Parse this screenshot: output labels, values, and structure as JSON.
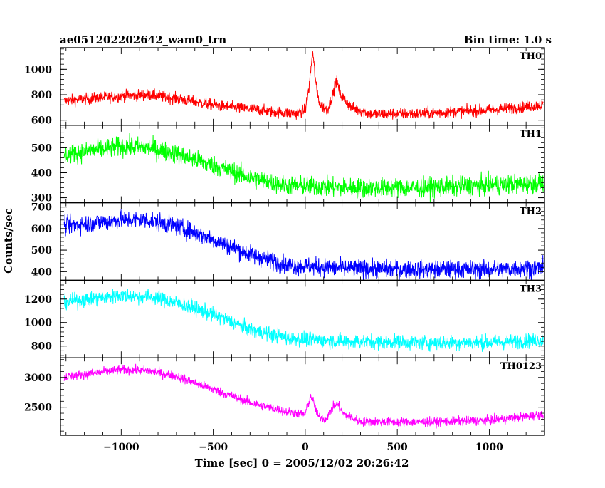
{
  "header": {
    "title": "ae051202202642_wam0_trn",
    "bin_time": "Bin time: 1.0 s"
  },
  "axes": {
    "xlabel": "Time [sec] 0 = 2005/12/02 20:26:42",
    "ylabel": "Counts/sec"
  },
  "colors": {
    "TH0": "#ff0000",
    "TH1": "#00ff00",
    "TH2": "#0000ff",
    "TH3": "#00ffff",
    "TH0123": "#ff00ff",
    "axes": "#000000",
    "background": "#ffffff"
  },
  "chart_data": {
    "type": "line",
    "title": "ae051202202642_wam0_trn",
    "subtitle": "Bin time: 1.0 s",
    "xlabel": "Time [sec] 0 = 2005/12/02 20:26:42",
    "ylabel": "Counts/sec",
    "xlim": [
      -1330,
      1300
    ],
    "x_ticks": [
      -1000,
      -500,
      0,
      500,
      1000
    ],
    "x_tick_labels": [
      "−1000",
      "−500",
      "0",
      "500",
      "1000"
    ],
    "bin_time_s": 1.0,
    "grid": false,
    "legend": "none",
    "panels": [
      {
        "name": "TH0",
        "color": "#ff0000",
        "ylim": [
          560,
          1170
        ],
        "y_ticks": [
          600,
          800,
          1000
        ],
        "trend": [
          [
            -1330,
            750
          ],
          [
            -1000,
            790
          ],
          [
            -850,
            800
          ],
          [
            -700,
            770
          ],
          [
            -500,
            720
          ],
          [
            -200,
            670
          ],
          [
            -50,
            650
          ],
          [
            0,
            680
          ],
          [
            20,
            850
          ],
          [
            40,
            1140
          ],
          [
            60,
            860
          ],
          [
            80,
            720
          ],
          [
            120,
            680
          ],
          [
            150,
            800
          ],
          [
            170,
            920
          ],
          [
            190,
            800
          ],
          [
            250,
            700
          ],
          [
            350,
            650
          ],
          [
            600,
            650
          ],
          [
            1000,
            680
          ],
          [
            1300,
            720
          ]
        ],
        "noise": 32
      },
      {
        "name": "TH1",
        "color": "#00ff00",
        "ylim": [
          280,
          590
        ],
        "y_ticks": [
          300,
          400,
          500
        ],
        "trend": [
          [
            -1330,
            470
          ],
          [
            -1000,
            505
          ],
          [
            -850,
            500
          ],
          [
            -700,
            475
          ],
          [
            -500,
            430
          ],
          [
            -300,
            380
          ],
          [
            -100,
            350
          ],
          [
            200,
            340
          ],
          [
            600,
            340
          ],
          [
            1000,
            350
          ],
          [
            1300,
            360
          ]
        ],
        "noise": 28
      },
      {
        "name": "TH2",
        "color": "#0000ff",
        "ylim": [
          360,
          720
        ],
        "y_ticks": [
          400,
          500,
          600,
          700
        ],
        "trend": [
          [
            -1330,
            610
          ],
          [
            -1000,
            640
          ],
          [
            -850,
            640
          ],
          [
            -700,
            610
          ],
          [
            -500,
            550
          ],
          [
            -300,
            480
          ],
          [
            -100,
            430
          ],
          [
            200,
            415
          ],
          [
            600,
            410
          ],
          [
            1000,
            410
          ],
          [
            1300,
            420
          ]
        ],
        "noise": 30
      },
      {
        "name": "TH3",
        "color": "#00ffff",
        "ylim": [
          700,
          1360
        ],
        "y_ticks": [
          800,
          1000,
          1200
        ],
        "trend": [
          [
            -1330,
            1170
          ],
          [
            -1000,
            1230
          ],
          [
            -850,
            1220
          ],
          [
            -700,
            1170
          ],
          [
            -500,
            1070
          ],
          [
            -300,
            940
          ],
          [
            -100,
            870
          ],
          [
            200,
            840
          ],
          [
            600,
            830
          ],
          [
            1000,
            830
          ],
          [
            1300,
            850
          ]
        ],
        "noise": 45
      },
      {
        "name": "TH0123",
        "color": "#ff00ff",
        "ylim": [
          2030,
          3330
        ],
        "y_ticks": [
          2500,
          3000
        ],
        "trend": [
          [
            -1330,
            3000
          ],
          [
            -1000,
            3130
          ],
          [
            -850,
            3110
          ],
          [
            -700,
            3020
          ],
          [
            -500,
            2800
          ],
          [
            -300,
            2580
          ],
          [
            -100,
            2420
          ],
          [
            0,
            2380
          ],
          [
            30,
            2700
          ],
          [
            45,
            2580
          ],
          [
            70,
            2350
          ],
          [
            110,
            2300
          ],
          [
            150,
            2500
          ],
          [
            175,
            2560
          ],
          [
            210,
            2380
          ],
          [
            300,
            2260
          ],
          [
            600,
            2250
          ],
          [
            1000,
            2280
          ],
          [
            1300,
            2380
          ]
        ],
        "noise": 55
      }
    ]
  }
}
